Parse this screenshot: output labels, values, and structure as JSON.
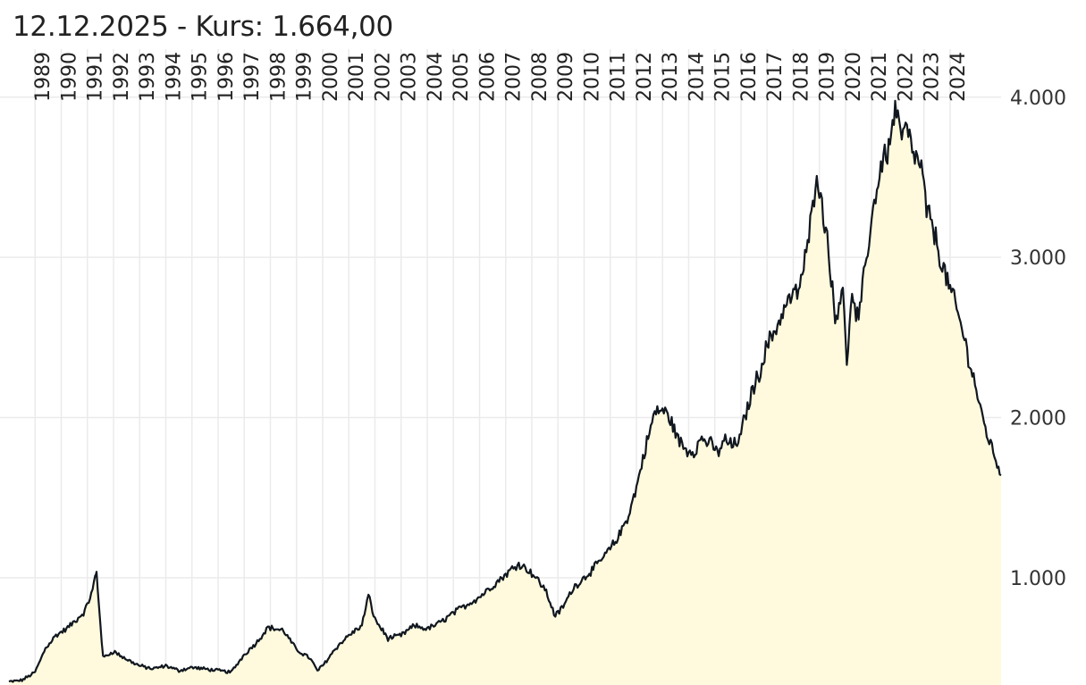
{
  "header": {
    "date": "12.12.2025",
    "price_label": " - Kurs: 1.664,00"
  },
  "colors": {
    "line": "#10171f",
    "area": "#fffadd",
    "grid": "#ebebeb"
  },
  "chart_data": {
    "type": "area",
    "title": "",
    "xlabel": "",
    "ylabel": "",
    "grid": true,
    "x_axis_position": "top",
    "y_axis_position": "right",
    "ylim": [
      330,
      4300
    ],
    "xlim": [
      1988.0,
      2025.95
    ],
    "year_ticks": [
      "1989",
      "1990",
      "1991",
      "1992",
      "1993",
      "1994",
      "1995",
      "1996",
      "1997",
      "1998",
      "1999",
      "2000",
      "2001",
      "2002",
      "2003",
      "2004",
      "2005",
      "2006",
      "2007",
      "2008",
      "2009",
      "2010",
      "2011",
      "2012",
      "2013",
      "2014",
      "2015",
      "2016",
      "2017",
      "2018",
      "2019",
      "2020",
      "2021",
      "2022",
      "2023",
      "2024"
    ],
    "y_ticks": [
      {
        "value": 1000,
        "label": "1.000"
      },
      {
        "value": 2000,
        "label": "2.000"
      },
      {
        "value": 3000,
        "label": "3.000"
      },
      {
        "value": 4000,
        "label": "4.000"
      }
    ],
    "series": [
      {
        "x": [
          1988.0,
          1988.5,
          1989.0,
          1989.4,
          1989.8,
          1990.2,
          1990.6,
          1990.9,
          1991.2,
          1991.3,
          1991.35,
          1991.6,
          1992.0,
          1992.5,
          1993.0,
          1993.5,
          1994.0,
          1994.5,
          1995.0,
          1995.5,
          1996.0,
          1996.5,
          1997.0,
          1997.5,
          1997.9,
          1998.5,
          1999.0,
          1999.5,
          1999.8,
          2000.0,
          2000.5,
          2001.0,
          2001.5,
          2001.75,
          2002.0,
          2002.5,
          2003.0,
          2003.5,
          2004.0,
          2004.5,
          2005.0,
          2005.5,
          2006.0,
          2006.5,
          2007.0,
          2007.5,
          2008.0,
          2008.5,
          2008.9,
          2009.2,
          2009.6,
          2010.0,
          2010.5,
          2011.0,
          2011.3,
          2011.7,
          2012.0,
          2012.3,
          2012.7,
          2013.0,
          2013.3,
          2013.6,
          2013.9,
          2014.2,
          2014.5,
          2014.8,
          2015.1,
          2015.4,
          2015.7,
          2016.0,
          2016.1,
          2016.4,
          2016.7,
          2017.0,
          2017.4,
          2017.8,
          2018.2,
          2018.5,
          2018.7,
          2018.9,
          2019.1,
          2019.3,
          2019.6,
          2019.9,
          2020.05,
          2020.2,
          2020.5,
          2020.8,
          2021.1,
          2021.4,
          2021.7,
          2021.9,
          2022.1,
          2022.3,
          2022.6,
          2022.9,
          2023.1,
          2023.4,
          2023.7,
          2024.0,
          2024.3,
          2024.6,
          2024.9,
          2025.2,
          2025.5,
          2025.8,
          2025.95
        ],
        "y": [
          350,
          360,
          410,
          560,
          640,
          680,
          740,
          790,
          920,
          1010,
          1030,
          500,
          540,
          490,
          450,
          430,
          450,
          420,
          440,
          430,
          420,
          410,
          520,
          600,
          690,
          670,
          550,
          500,
          420,
          450,
          560,
          640,
          700,
          890,
          740,
          620,
          640,
          700,
          680,
          720,
          780,
          830,
          880,
          950,
          1020,
          1090,
          1030,
          930,
          760,
          820,
          940,
          1000,
          1080,
          1180,
          1250,
          1390,
          1560,
          1780,
          2030,
          2050,
          1990,
          1860,
          1800,
          1790,
          1870,
          1840,
          1780,
          1860,
          1820,
          1880,
          1970,
          2150,
          2280,
          2450,
          2580,
          2730,
          2790,
          3020,
          3250,
          3560,
          3300,
          3150,
          2600,
          2850,
          2280,
          2750,
          2600,
          3000,
          3350,
          3600,
          3700,
          3950,
          3750,
          3800,
          3650,
          3550,
          3300,
          3150,
          2950,
          2800,
          2650,
          2450,
          2250,
          2020,
          1850,
          1720,
          1640
        ]
      }
    ]
  }
}
